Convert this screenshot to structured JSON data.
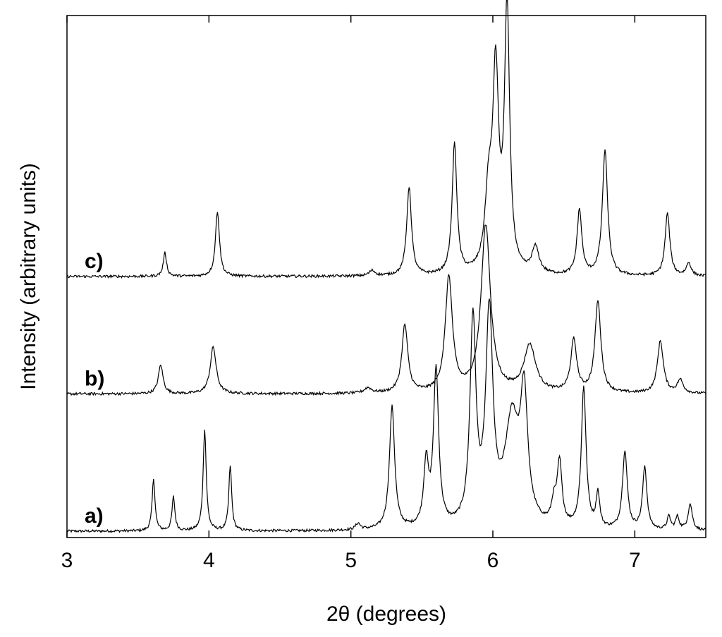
{
  "chart_data": {
    "type": "line",
    "title": "",
    "xlabel": "2θ (degrees)",
    "ylabel": "Intensity (arbitrary units)",
    "xlim": [
      3,
      7.5
    ],
    "ylim": [
      0,
      100
    ],
    "x_ticks": [
      "3",
      "4",
      "5",
      "6",
      "7"
    ],
    "x_tick_values": [
      3,
      4,
      5,
      6,
      7
    ],
    "y_tick_labels_shown": false,
    "grid": false,
    "legend": "none",
    "line_color": "#000000",
    "series": [
      {
        "name": "a)",
        "baseline": 1.2,
        "peaks": [
          [
            3.61,
            10,
            0.012
          ],
          [
            3.75,
            6.5,
            0.012
          ],
          [
            3.97,
            19.5,
            0.013
          ],
          [
            4.15,
            12.5,
            0.012
          ],
          [
            5.05,
            1.2,
            0.02
          ],
          [
            5.29,
            23.5,
            0.022
          ],
          [
            5.53,
            12,
            0.02
          ],
          [
            5.6,
            30,
            0.022
          ],
          [
            5.86,
            39,
            0.025
          ],
          [
            5.975,
            40,
            0.03
          ],
          [
            6.135,
            20,
            0.06
          ],
          [
            6.22,
            23,
            0.03
          ],
          [
            6.43,
            4,
            0.02
          ],
          [
            6.47,
            12,
            0.02
          ],
          [
            6.64,
            27,
            0.02
          ],
          [
            6.74,
            6.5,
            0.015
          ],
          [
            6.93,
            15,
            0.02
          ],
          [
            7.07,
            12,
            0.018
          ],
          [
            7.24,
            2.5,
            0.015
          ],
          [
            7.3,
            2.5,
            0.015
          ],
          [
            7.39,
            5,
            0.018
          ]
        ]
      },
      {
        "name": "b)",
        "baseline": 27.5,
        "peaks": [
          [
            3.66,
            5.5,
            0.02
          ],
          [
            4.03,
            9,
            0.025
          ],
          [
            5.12,
            1,
            0.03
          ],
          [
            5.38,
            13,
            0.025
          ],
          [
            5.69,
            22,
            0.03
          ],
          [
            5.95,
            32,
            0.04
          ],
          [
            6.26,
            9,
            0.05
          ],
          [
            6.57,
            10,
            0.025
          ],
          [
            6.74,
            17.5,
            0.025
          ],
          [
            7.18,
            10,
            0.025
          ],
          [
            7.32,
            2.5,
            0.025
          ]
        ]
      },
      {
        "name": "c)",
        "baseline": 50,
        "peaks": [
          [
            3.69,
            4.5,
            0.014
          ],
          [
            4.06,
            12.5,
            0.017
          ],
          [
            5.15,
            1,
            0.025
          ],
          [
            5.41,
            17,
            0.02
          ],
          [
            5.73,
            25,
            0.02
          ],
          [
            5.97,
            14,
            0.03
          ],
          [
            6.02,
            37,
            0.025
          ],
          [
            6.1,
            50,
            0.022
          ],
          [
            6.3,
            5,
            0.03
          ],
          [
            6.61,
            12.5,
            0.02
          ],
          [
            6.79,
            24,
            0.022
          ],
          [
            7.23,
            12,
            0.02
          ],
          [
            7.38,
            2.5,
            0.02
          ]
        ]
      }
    ]
  }
}
